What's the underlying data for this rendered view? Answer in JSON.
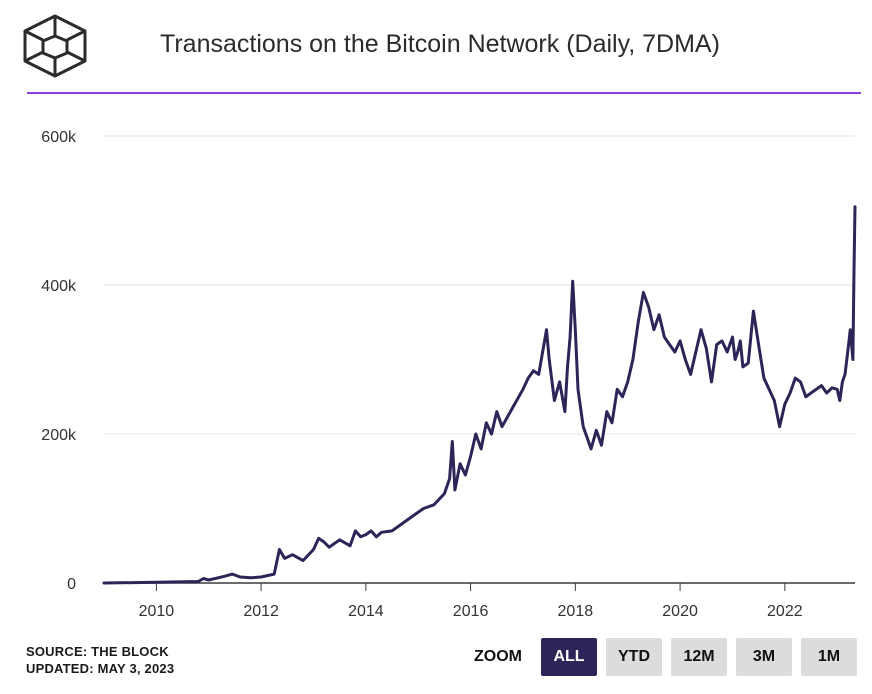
{
  "header": {
    "title": "Transactions on the Bitcoin Network (Daily, 7DMA)",
    "logo_icon": "the-block-cube-logo-icon",
    "accent_color": "#8e3fd8"
  },
  "footer": {
    "source": "SOURCE: THE BLOCK",
    "updated": "UPDATED: MAY 3, 2023"
  },
  "zoom": {
    "label": "ZOOM",
    "buttons": [
      {
        "label": "ALL",
        "active": true
      },
      {
        "label": "YTD",
        "active": false
      },
      {
        "label": "12M",
        "active": false
      },
      {
        "label": "3M",
        "active": false
      },
      {
        "label": "1M",
        "active": false
      }
    ],
    "active_color": "#2d2457",
    "inactive_color": "#dcdcdc"
  },
  "chart_data": {
    "type": "line",
    "title": "Transactions on the Bitcoin Network (Daily, 7DMA)",
    "xlabel": "",
    "ylabel": "",
    "xlim": [
      2009.0,
      2023.34
    ],
    "ylim": [
      0,
      600000
    ],
    "x_ticks": [
      2010,
      2012,
      2014,
      2016,
      2018,
      2020,
      2022
    ],
    "x_tick_labels": [
      "2010",
      "2012",
      "2014",
      "2016",
      "2018",
      "2020",
      "2022"
    ],
    "y_ticks": [
      0,
      200000,
      400000,
      600000
    ],
    "y_tick_labels": [
      "0",
      "200k",
      "400k",
      "600k"
    ],
    "grid": true,
    "line_color": "#2d2457",
    "series": [
      {
        "x": [
          2009.0,
          2010.0,
          2010.8,
          2010.9,
          2011.0,
          2011.3,
          2011.45,
          2011.6,
          2011.8,
          2012.0,
          2012.25,
          2012.35,
          2012.45,
          2012.6,
          2012.8,
          2013.0,
          2013.1,
          2013.2,
          2013.3,
          2013.5,
          2013.7,
          2013.8,
          2013.9,
          2014.0,
          2014.1,
          2014.2,
          2014.3,
          2014.5,
          2014.7,
          2014.9,
          2015.1,
          2015.3,
          2015.5,
          2015.6,
          2015.65,
          2015.7,
          2015.8,
          2015.9,
          2016.0,
          2016.1,
          2016.2,
          2016.3,
          2016.4,
          2016.5,
          2016.6,
          2016.8,
          2017.0,
          2017.1,
          2017.2,
          2017.3,
          2017.4,
          2017.45,
          2017.5,
          2017.6,
          2017.7,
          2017.8,
          2017.85,
          2017.9,
          2017.95,
          2018.0,
          2018.05,
          2018.15,
          2018.3,
          2018.4,
          2018.5,
          2018.6,
          2018.7,
          2018.8,
          2018.9,
          2019.0,
          2019.1,
          2019.2,
          2019.3,
          2019.4,
          2019.5,
          2019.6,
          2019.7,
          2019.8,
          2019.9,
          2020.0,
          2020.1,
          2020.2,
          2020.3,
          2020.4,
          2020.5,
          2020.6,
          2020.7,
          2020.8,
          2020.9,
          2021.0,
          2021.05,
          2021.1,
          2021.15,
          2021.2,
          2021.3,
          2021.4,
          2021.5,
          2021.6,
          2021.7,
          2021.8,
          2021.9,
          2022.0,
          2022.1,
          2022.2,
          2022.3,
          2022.4,
          2022.5,
          2022.6,
          2022.7,
          2022.8,
          2022.9,
          2023.0,
          2023.05,
          2023.1,
          2023.15,
          2023.2,
          2023.25,
          2023.3,
          2023.32,
          2023.34
        ],
        "values": [
          0,
          1000,
          2000,
          6000,
          4000,
          9000,
          12000,
          8000,
          7000,
          8000,
          12000,
          45000,
          33000,
          38000,
          30000,
          45000,
          60000,
          55000,
          48000,
          58000,
          50000,
          70000,
          62000,
          65000,
          70000,
          62000,
          68000,
          70000,
          80000,
          90000,
          100000,
          105000,
          120000,
          140000,
          190000,
          125000,
          160000,
          145000,
          170000,
          200000,
          180000,
          215000,
          200000,
          230000,
          210000,
          235000,
          260000,
          275000,
          285000,
          280000,
          320000,
          340000,
          300000,
          245000,
          270000,
          230000,
          290000,
          330000,
          405000,
          340000,
          260000,
          210000,
          180000,
          205000,
          185000,
          230000,
          215000,
          260000,
          250000,
          270000,
          300000,
          350000,
          390000,
          370000,
          340000,
          360000,
          330000,
          320000,
          310000,
          325000,
          300000,
          280000,
          310000,
          340000,
          315000,
          270000,
          320000,
          325000,
          310000,
          330000,
          300000,
          310000,
          325000,
          290000,
          295000,
          365000,
          320000,
          275000,
          260000,
          245000,
          210000,
          240000,
          255000,
          275000,
          270000,
          250000,
          255000,
          260000,
          265000,
          255000,
          262000,
          260000,
          245000,
          270000,
          280000,
          310000,
          340000,
          300000,
          420000,
          505000
        ]
      }
    ]
  }
}
